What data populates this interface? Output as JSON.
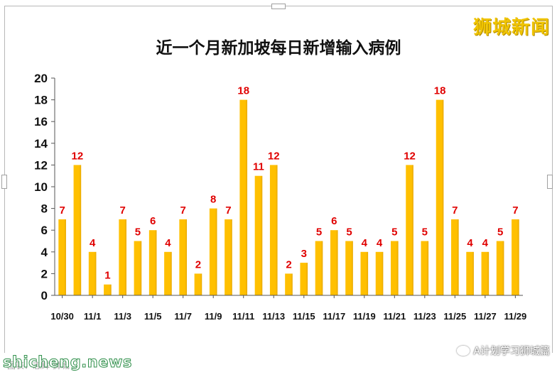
{
  "brand": {
    "name": "狮城新闻"
  },
  "footer": {
    "watermark": "shicheng.news",
    "source_note": "图表：志辉·狮城",
    "wechat_account": "A计划学习狮城篇"
  },
  "colors": {
    "bar": "#ffc000",
    "bar_dark": "#e8a800",
    "value_label": "#e00000",
    "axis": "#555555",
    "grid": "#ececec"
  },
  "chart_data": {
    "type": "bar",
    "title": "近一个月新加坡每日新增输入病例",
    "categories": [
      "10/30",
      "10/31",
      "11/1",
      "11/2",
      "11/3",
      "11/4",
      "11/5",
      "11/6",
      "11/7",
      "11/8",
      "11/9",
      "11/10",
      "11/11",
      "11/12",
      "11/13",
      "11/14",
      "11/15",
      "11/16",
      "11/17",
      "11/18",
      "11/19",
      "11/20",
      "11/21",
      "11/22",
      "11/23",
      "11/24",
      "11/25",
      "11/26",
      "11/27",
      "11/28",
      "11/29"
    ],
    "values": [
      7,
      12,
      4,
      1,
      7,
      5,
      6,
      4,
      7,
      2,
      8,
      7,
      18,
      11,
      12,
      2,
      3,
      5,
      6,
      5,
      4,
      4,
      5,
      12,
      5,
      18,
      7,
      4,
      4,
      5,
      7
    ],
    "tick_labels": [
      "10/30",
      "11/1",
      "11/3",
      "11/5",
      "11/7",
      "11/9",
      "11/11",
      "11/13",
      "11/15",
      "11/17",
      "11/19",
      "11/21",
      "11/23",
      "11/25",
      "11/27",
      "11/29"
    ],
    "yticks": [
      0,
      2,
      4,
      6,
      8,
      10,
      12,
      14,
      16,
      18,
      20
    ],
    "ylim": [
      0,
      20
    ],
    "xlabel": "",
    "ylabel": "",
    "data_labels": true,
    "grid": false,
    "legend": "none"
  }
}
